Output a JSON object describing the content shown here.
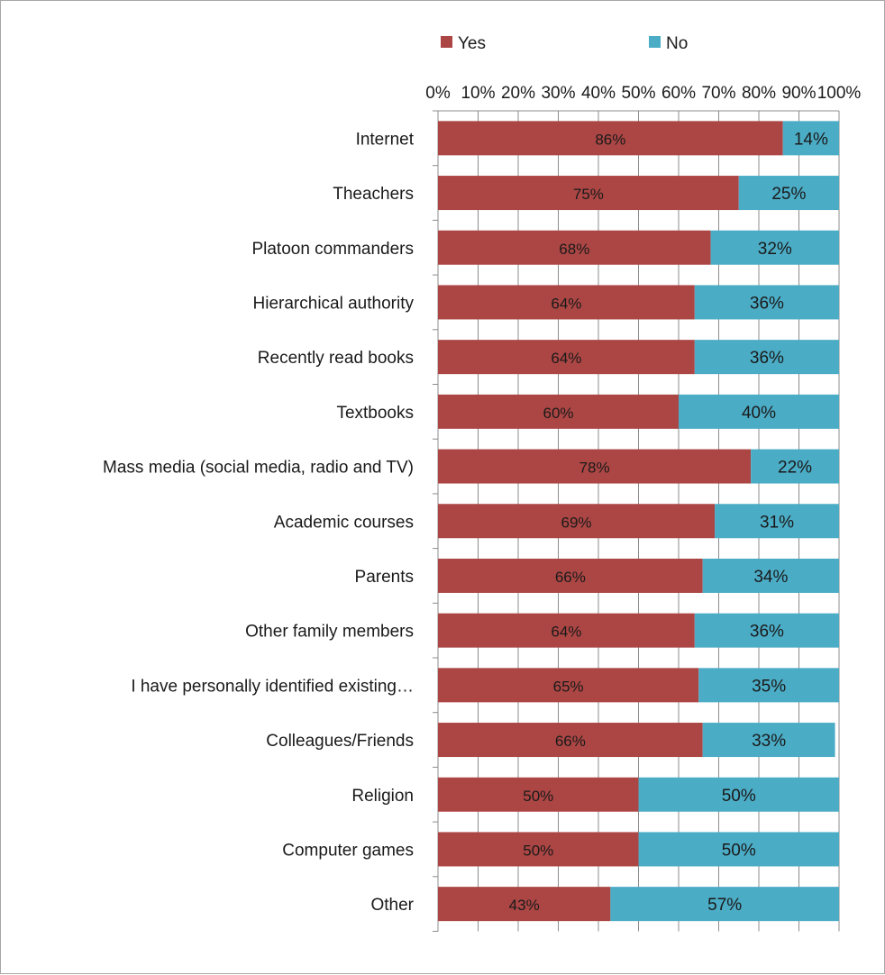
{
  "chart_data": {
    "type": "bar",
    "orientation": "horizontal",
    "stacked": true,
    "percent_stacked": true,
    "categories": [
      "Internet",
      "Theachers",
      "Platoon commanders",
      "Hierarchical authority",
      "Recently read books",
      "Textbooks",
      "Mass media (social media, radio and TV)",
      "Academic courses",
      "Parents",
      "Other family members",
      "I have personally identified existing…",
      "Colleagues/Friends",
      "Religion",
      "Computer games",
      "Other"
    ],
    "series": [
      {
        "name": "Yes",
        "color": "#ab4644",
        "values": [
          86,
          75,
          68,
          64,
          64,
          60,
          78,
          69,
          66,
          64,
          65,
          66,
          50,
          50,
          43
        ],
        "labels": [
          "86%",
          "75%",
          "68%",
          "64%",
          "64%",
          "60%",
          "78%",
          "69%",
          "66%",
          "64%",
          "65%",
          "66%",
          "50%",
          "50%",
          "43%"
        ]
      },
      {
        "name": "No",
        "color": "#4bacc6",
        "values": [
          14,
          25,
          32,
          36,
          36,
          40,
          22,
          31,
          34,
          36,
          35,
          33,
          50,
          50,
          57
        ],
        "labels": [
          "14%",
          "25%",
          "32%",
          "36%",
          "36%",
          "40%",
          "22%",
          "31%",
          "34%",
          "36%",
          "35%",
          "33%",
          "50%",
          "50%",
          "57%"
        ]
      }
    ],
    "xlim": [
      0,
      100
    ],
    "x_ticks": [
      "0%",
      "10%",
      "20%",
      "30%",
      "40%",
      "50%",
      "60%",
      "70%",
      "80%",
      "90%",
      "100%"
    ],
    "x_axis_position": "top",
    "legend_position": "top",
    "grid": true
  }
}
